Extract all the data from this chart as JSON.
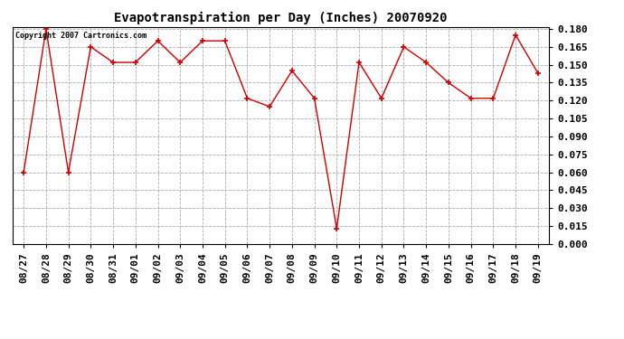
{
  "title": "Evapotranspiration per Day (Inches) 20070920",
  "copyright_text": "Copyright 2007 Cartronics.com",
  "x_labels": [
    "08/27",
    "08/28",
    "08/29",
    "08/30",
    "08/31",
    "09/01",
    "09/02",
    "09/03",
    "09/04",
    "09/05",
    "09/06",
    "09/07",
    "09/08",
    "09/09",
    "09/10",
    "09/11",
    "09/12",
    "09/13",
    "09/14",
    "09/15",
    "09/16",
    "09/17",
    "09/18",
    "09/19"
  ],
  "y_values": [
    0.06,
    0.18,
    0.06,
    0.165,
    0.152,
    0.152,
    0.17,
    0.152,
    0.17,
    0.17,
    0.122,
    0.115,
    0.145,
    0.122,
    0.013,
    0.152,
    0.122,
    0.165,
    0.152,
    0.135,
    0.122,
    0.122,
    0.175,
    0.143
  ],
  "line_color": "#cc0000",
  "marker": "+",
  "marker_color": "#cc0000",
  "bg_color": "#ffffff",
  "grid_color": "#aaaaaa",
  "ylim": [
    0.0,
    0.1815
  ],
  "yticks": [
    0.0,
    0.015,
    0.03,
    0.045,
    0.06,
    0.075,
    0.09,
    0.105,
    0.12,
    0.135,
    0.15,
    0.165,
    0.18
  ],
  "title_fontsize": 10,
  "tick_fontsize": 8,
  "copyright_fontsize": 6
}
